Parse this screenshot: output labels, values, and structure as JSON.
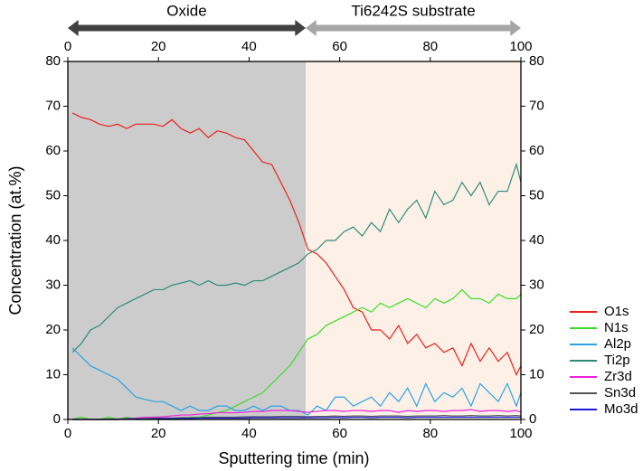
{
  "chart_data": {
    "type": "line",
    "xlabel": "Sputtering time (min)",
    "ylabel": "Concentration (at.%)",
    "regions": [
      {
        "label": "Oxide",
        "start": 0,
        "end": 52.5,
        "color": "#cccccc",
        "arrow_color": "#404040"
      },
      {
        "label": "Ti6242S substrate",
        "start": 52.5,
        "end": 100,
        "color": "#fdf1e7",
        "arrow_color": "#a6a6a6"
      }
    ],
    "x": [
      1,
      3,
      5,
      7,
      9,
      11,
      13,
      15,
      17,
      19,
      21,
      23,
      25,
      27,
      29,
      31,
      33,
      35,
      37,
      39,
      41,
      43,
      45,
      47,
      49,
      51,
      53,
      55,
      57,
      59,
      61,
      63,
      65,
      67,
      69,
      71,
      73,
      75,
      77,
      79,
      81,
      83,
      85,
      87,
      89,
      91,
      93,
      95,
      97,
      99,
      100
    ],
    "series": [
      {
        "name": "O1s",
        "color": "#e8211d",
        "values": [
          68.5,
          67.5,
          67,
          66,
          65.5,
          66,
          65,
          66,
          66,
          66,
          65.5,
          67,
          65,
          64,
          65,
          63,
          64.5,
          64,
          63,
          62.5,
          60,
          57.5,
          57,
          53,
          49,
          44,
          38,
          37,
          35,
          32,
          29,
          25,
          24,
          20,
          20,
          18,
          21,
          17,
          19,
          16,
          17,
          15,
          16,
          12,
          17,
          13,
          16,
          13,
          15,
          10,
          12
        ]
      },
      {
        "name": "N1s",
        "color": "#3ddc2a",
        "values": [
          0,
          0.5,
          0,
          0,
          0.5,
          0,
          0.5,
          0,
          0,
          0,
          0,
          0,
          0,
          0.5,
          0.5,
          1,
          1.5,
          2,
          3,
          4,
          5,
          6,
          8,
          10,
          12,
          15,
          18,
          19,
          21,
          22,
          23,
          24,
          25,
          24,
          26,
          25,
          26,
          27,
          26,
          25,
          27,
          26,
          27,
          29,
          27,
          27,
          26,
          28,
          27,
          27,
          28
        ]
      },
      {
        "name": "Al2p",
        "color": "#2aa3e6",
        "values": [
          16,
          14,
          12,
          11,
          10,
          9,
          7,
          5,
          4.5,
          4,
          4,
          3,
          2,
          3,
          2,
          2,
          3,
          3,
          2,
          2,
          3,
          2,
          3,
          3,
          2,
          2,
          1,
          3,
          2,
          5,
          5,
          3,
          4,
          5,
          3,
          6,
          4,
          7,
          3,
          8,
          4,
          6,
          5,
          7,
          3,
          8,
          6,
          4,
          8,
          3,
          6
        ]
      },
      {
        "name": "Ti2p",
        "color": "#2e8b78",
        "values": [
          15,
          17,
          20,
          21,
          23,
          25,
          26,
          27,
          28,
          29,
          29,
          30,
          30.5,
          31,
          30,
          31,
          30,
          30,
          30.5,
          30,
          31,
          31,
          32,
          33,
          34,
          35,
          37,
          38,
          40,
          40,
          42,
          43,
          41,
          44,
          42,
          47,
          44,
          47,
          49,
          45,
          51,
          48,
          49,
          53,
          50,
          53,
          48,
          51,
          51,
          57,
          53
        ]
      },
      {
        "name": "Zr3d",
        "color": "#ee22d8",
        "values": [
          0,
          0,
          0,
          0,
          0,
          0,
          0.2,
          0.3,
          0.5,
          0.5,
          0.6,
          0.8,
          1,
          1,
          1.2,
          1.3,
          1.5,
          1.5,
          1.5,
          1.6,
          1.8,
          1.8,
          2,
          2,
          2,
          1.8,
          1.6,
          1.8,
          2,
          2,
          1.8,
          2,
          2,
          1.8,
          2,
          2,
          1.6,
          2,
          1.8,
          2,
          2,
          1.8,
          2,
          2,
          2.2,
          1.8,
          2,
          2,
          1.8,
          2,
          1.6
        ]
      },
      {
        "name": "Sn3d",
        "color": "#555555",
        "values": [
          0,
          0,
          0,
          0,
          0.1,
          0.1,
          0.2,
          0.2,
          0.2,
          0.3,
          0.3,
          0.3,
          0.4,
          0.4,
          0.4,
          0.5,
          0.5,
          0.5,
          0.5,
          0.6,
          0.6,
          0.6,
          0.6,
          0.7,
          0.7,
          0.7,
          0.6,
          0.7,
          0.7,
          0.8,
          0.7,
          0.8,
          0.8,
          0.7,
          0.8,
          0.8,
          0.8,
          0.7,
          0.8,
          0.8,
          0.8,
          0.9,
          0.8,
          0.8,
          0.9,
          0.8,
          0.8,
          0.9,
          0.8,
          0.9,
          0.8
        ]
      },
      {
        "name": "Mo3d",
        "color": "#1a1adb",
        "values": [
          0,
          0,
          0,
          0,
          0,
          0,
          0.1,
          0.1,
          0.1,
          0.1,
          0.2,
          0.2,
          0.2,
          0.2,
          0.3,
          0.3,
          0.3,
          0.3,
          0.3,
          0.3,
          0.4,
          0.4,
          0.4,
          0.4,
          0.4,
          0.4,
          0.4,
          0.4,
          0.4,
          0.5,
          0.4,
          0.5,
          0.5,
          0.4,
          0.5,
          0.5,
          0.5,
          0.4,
          0.5,
          0.5,
          0.5,
          0.5,
          0.5,
          0.5,
          0.5,
          0.5,
          0.5,
          0.5,
          0.5,
          0.5,
          0.5
        ]
      }
    ],
    "xlim": [
      0,
      100
    ],
    "xticks": [
      0,
      20,
      40,
      60,
      80,
      100
    ],
    "x2lim": [
      0,
      100
    ],
    "x2ticks": [
      0,
      20,
      40,
      60,
      80,
      100
    ],
    "ylim": [
      0,
      80
    ],
    "yticks": [
      0,
      10,
      20,
      30,
      40,
      50,
      60,
      70,
      80
    ],
    "y2lim": [
      0,
      80
    ],
    "y2ticks": [
      0,
      10,
      20,
      30,
      40,
      50,
      60,
      70,
      80
    ]
  }
}
